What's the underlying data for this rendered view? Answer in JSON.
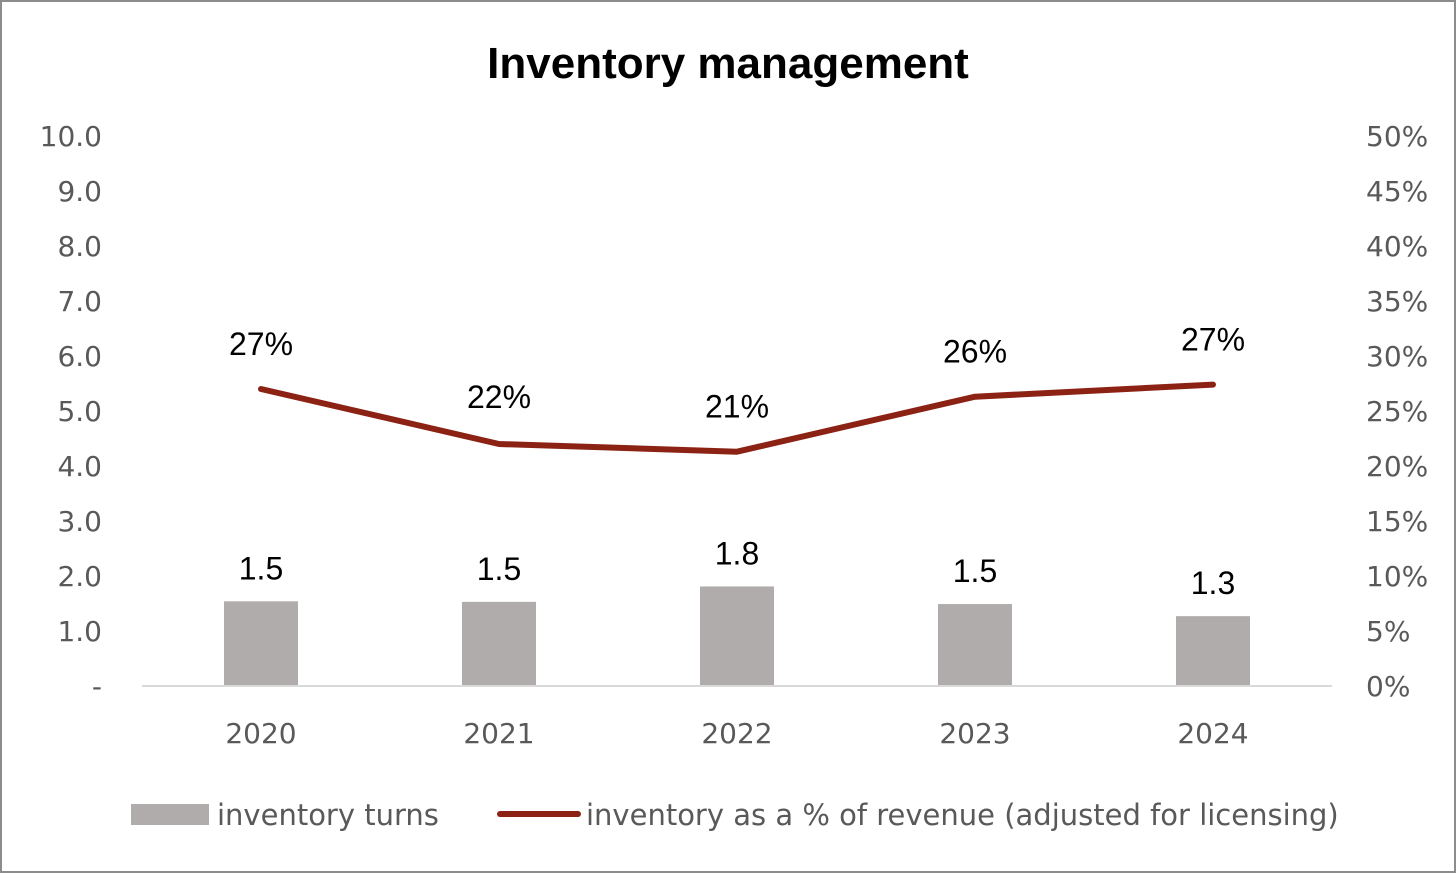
{
  "chart_data": {
    "type": "bar",
    "title": "Inventory management",
    "categories": [
      "2020",
      "2021",
      "2022",
      "2023",
      "2024"
    ],
    "series": [
      {
        "name": "inventory turns",
        "type": "bar",
        "axis": "left",
        "values": [
          1.54,
          1.53,
          1.81,
          1.49,
          1.27
        ],
        "labels": [
          "1.5",
          "1.5",
          "1.8",
          "1.5",
          "1.3"
        ],
        "color": "#b0acab"
      },
      {
        "name": "inventory as a % of revenue (adjusted for licensing)",
        "type": "line",
        "axis": "right",
        "values": [
          27,
          22,
          21.3,
          26.3,
          27.4
        ],
        "labels": [
          "27%",
          "22%",
          "21%",
          "26%",
          "27%"
        ],
        "color": "#8b2214"
      }
    ],
    "y_left": {
      "min": 0,
      "max": 10,
      "tick_labels": [
        "-",
        "1.0",
        "2.0",
        "3.0",
        "4.0",
        "5.0",
        "6.0",
        "7.0",
        "8.0",
        "9.0",
        "10.0"
      ]
    },
    "y_right": {
      "min": 0,
      "max": 50,
      "tick_labels": [
        "0%",
        "5%",
        "10%",
        "15%",
        "20%",
        "25%",
        "30%",
        "35%",
        "40%",
        "45%",
        "50%"
      ]
    },
    "xlabel": "",
    "ylabel": "",
    "grid": false,
    "legend_position": "bottom",
    "axis_color": "#d9d9d9",
    "tick_color": "#595959"
  }
}
